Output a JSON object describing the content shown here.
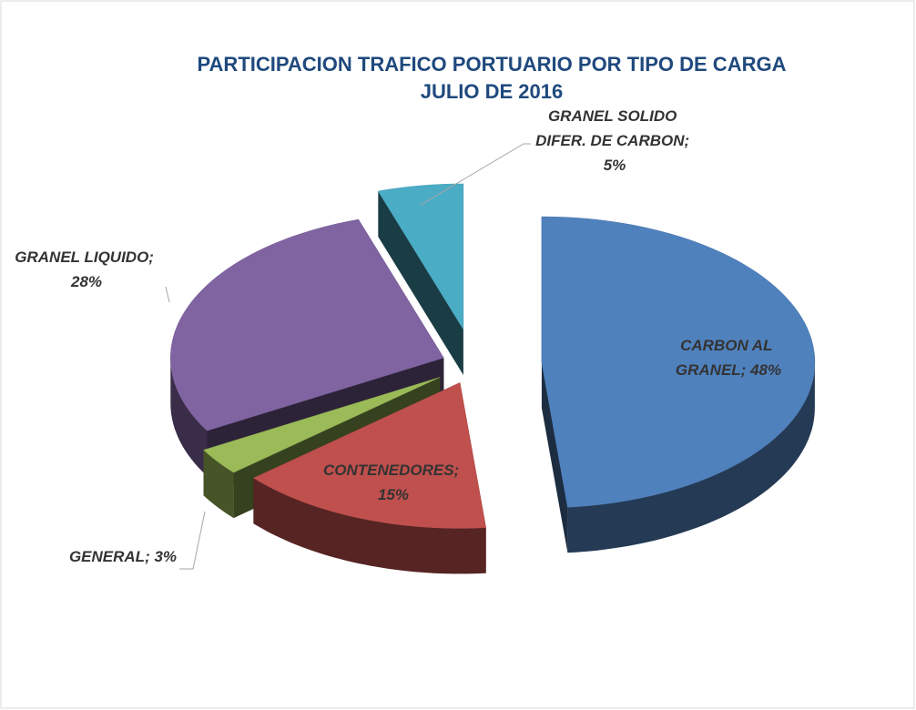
{
  "chart_data": {
    "type": "pie3d",
    "title": "PARTICIPACION TRAFICO PORTUARIO POR TIPO DE CARGA",
    "subtitle": "JULIO DE 2016",
    "categories": [
      "CARBON AL GRANEL",
      "CONTENEDORES",
      "GENERAL",
      "GRANEL LIQUIDO",
      "GRANEL SOLIDO DIFER. DE CARBON"
    ],
    "values": [
      48,
      15,
      3,
      28,
      5
    ],
    "value_labels": [
      "CARBON AL GRANEL; 48%",
      "CONTENEDORES; 15%",
      "GENERAL; 3%",
      "GRANEL LIQUIDO; 28%",
      "GRANEL SOLIDO DIFER. DE CARBON; 5%"
    ],
    "colors": [
      "#4f81bd",
      "#c0504d",
      "#9bbb59",
      "#8064a2",
      "#4bacc6"
    ]
  }
}
